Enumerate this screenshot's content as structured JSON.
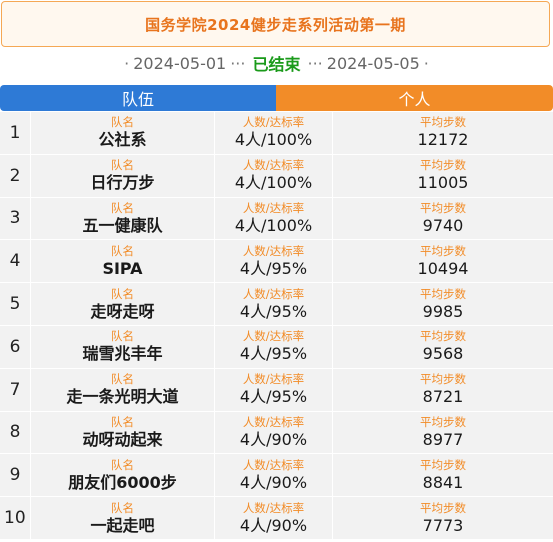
{
  "header": {
    "title": "国务学院2024健步走系列活动第一期"
  },
  "period": {
    "dot_left": "·",
    "start": "2024-05-01",
    "ellipsis_left": "···",
    "status": "已结束",
    "ellipsis_right": "···",
    "end": "2024-05-05",
    "dot_right": "·"
  },
  "tabs": {
    "team": "队伍",
    "individual": "个人"
  },
  "colors": {
    "team_tab": "#2e7ad6",
    "individual_tab": "#f28c28",
    "title": "#e8741e",
    "status": "#1a9a1a",
    "label": "#f28c28"
  },
  "labels": {
    "name": "队名",
    "rate": "人数/达标率",
    "steps": "平均步数"
  },
  "rows": [
    {
      "rank": "1",
      "name": "公社系",
      "rate": "4人/100%",
      "steps": "12172"
    },
    {
      "rank": "2",
      "name": "日行万步",
      "rate": "4人/100%",
      "steps": "11005"
    },
    {
      "rank": "3",
      "name": "五一健康队",
      "rate": "4人/100%",
      "steps": "9740"
    },
    {
      "rank": "4",
      "name": "SIPA",
      "rate": "4人/95%",
      "steps": "10494"
    },
    {
      "rank": "5",
      "name": "走呀走呀",
      "rate": "4人/95%",
      "steps": "9985"
    },
    {
      "rank": "6",
      "name": "瑞雪兆丰年",
      "rate": "4人/95%",
      "steps": "9568"
    },
    {
      "rank": "7",
      "name": "走一条光明大道",
      "rate": "4人/95%",
      "steps": "8721"
    },
    {
      "rank": "8",
      "name": "动呀动起来",
      "rate": "4人/90%",
      "steps": "8977"
    },
    {
      "rank": "9",
      "name": "朋友们6000步",
      "rate": "4人/90%",
      "steps": "8841"
    },
    {
      "rank": "10",
      "name": "一起走吧",
      "rate": "4人/90%",
      "steps": "7773"
    }
  ]
}
